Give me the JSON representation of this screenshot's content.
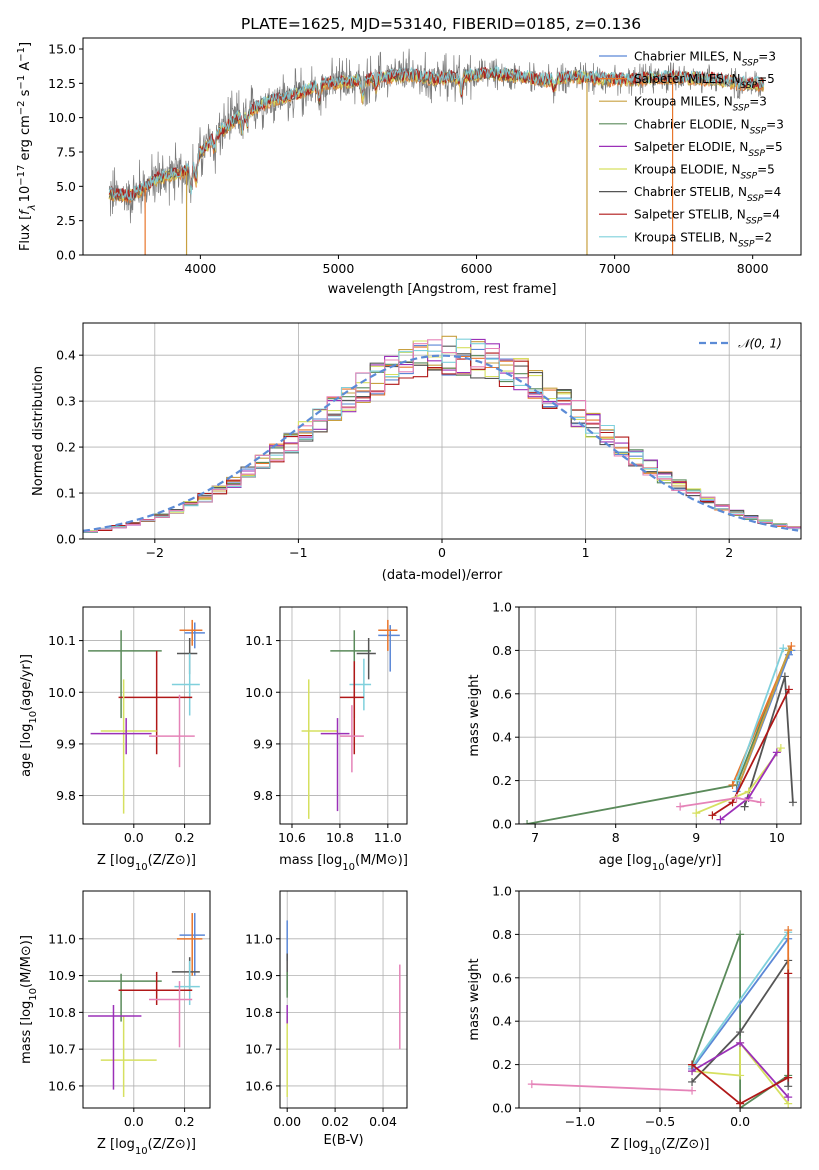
{
  "figure_title": "PLATE=1625, MJD=53140, FIBERID=0185, z=0.136",
  "colors": {
    "Chabrier MILES": "#5b87d6",
    "Salpeter MILES": "#e8762c",
    "Kroupa MILES": "#c8a040",
    "Chabrier ELODIE": "#5a8a5a",
    "Salpeter ELODIE": "#9b30b8",
    "Kroupa ELODIE": "#d6e060",
    "Chabrier STELIB": "#555555",
    "Salpeter STELIB": "#b01818",
    "Kroupa STELIB": "#7fd0dc",
    "pink": "#e583b8",
    "gaussian": "#5b8bd6"
  },
  "chart_data": [
    {
      "id": "spectrum",
      "type": "line",
      "xlabel": "wavelength [Angstrom, rest frame]",
      "ylabel": "Flux [f_λ 10^-17 erg cm^-2 s^-1 A^-1]",
      "ylabel_parts": {
        "pre": "Flux [",
        "f": "f",
        "fsub": "λ",
        "ten": "10",
        "exp1": "−17",
        "erg": " erg cm",
        "exp2": "−2",
        "s": " s",
        "exp3": "−1",
        "A": " A",
        "exp4": "−1",
        "post": "]"
      },
      "xlim": [
        3150,
        8350
      ],
      "ylim": [
        0,
        15.8
      ],
      "xticks": [
        4000,
        5000,
        6000,
        7000,
        8000
      ],
      "yticks": [
        0.0,
        2.5,
        5.0,
        7.5,
        10.0,
        12.5,
        15.0
      ],
      "ytick_labels": [
        "0.0",
        "2.5",
        "5.0",
        "7.5",
        "10.0",
        "12.5",
        "15.0"
      ],
      "legend": {
        "placement": "top-right",
        "entries": [
          {
            "name": "Chabrier MILES",
            "nssp": "3",
            "color": "#5b87d6"
          },
          {
            "name": "Salpeter MILES",
            "nssp": "5",
            "color": "#e8762c"
          },
          {
            "name": "Kroupa MILES",
            "nssp": "3",
            "color": "#c8a040"
          },
          {
            "name": "Chabrier ELODIE",
            "nssp": "3",
            "color": "#5a8a5a"
          },
          {
            "name": "Salpeter ELODIE",
            "nssp": "5",
            "color": "#9b30b8"
          },
          {
            "name": "Kroupa ELODIE",
            "nssp": "5",
            "color": "#d6e060"
          },
          {
            "name": "Chabrier STELIB",
            "nssp": "4",
            "color": "#555555"
          },
          {
            "name": "Salpeter STELIB",
            "nssp": "4",
            "color": "#b01818"
          },
          {
            "name": "Kroupa STELIB",
            "nssp": "2",
            "color": "#7fd0dc"
          }
        ]
      },
      "continuum": {
        "x": [
          3330,
          3500,
          3700,
          3900,
          4100,
          4300,
          4500,
          4700,
          4900,
          5100,
          5300,
          5500,
          5700,
          5900,
          6100,
          6300,
          6500,
          6700,
          6900,
          7100,
          7300,
          7500,
          7700,
          7900,
          8080
        ],
        "y": [
          4.4,
          4.3,
          5.6,
          6.1,
          8.6,
          10.2,
          11.2,
          11.7,
          12.5,
          12.6,
          12.9,
          13.1,
          12.8,
          13.0,
          13.2,
          13.0,
          12.7,
          13.0,
          12.8,
          12.7,
          12.9,
          12.9,
          12.8,
          12.5,
          12.4
        ]
      },
      "dropouts": [
        {
          "x": 3600,
          "color": "#e8762c"
        },
        {
          "x": 3900,
          "color": "#c8a040"
        },
        {
          "x": 6800,
          "color": "#c8a040"
        },
        {
          "x": 7420,
          "color": "#e8762c"
        }
      ]
    },
    {
      "id": "residuals",
      "type": "histogram",
      "xlabel": "(data-model)/error",
      "ylabel": "Normed distribution",
      "xlim": [
        -2.5,
        2.5
      ],
      "ylim": [
        0,
        0.47
      ],
      "xticks": [
        -2,
        -1,
        0,
        1,
        2
      ],
      "xtick_labels": [
        "−2",
        "−1",
        "0",
        "1",
        "2"
      ],
      "yticks": [
        0.0,
        0.1,
        0.2,
        0.3,
        0.4
      ],
      "ytick_labels": [
        "0.0",
        "0.1",
        "0.2",
        "0.3",
        "0.4"
      ],
      "legend": {
        "placement": "top-right",
        "label": "𝒩(0, 1)"
      },
      "bin_width": 0.1
    },
    {
      "id": "age_vs_Z",
      "type": "errorbar",
      "xlabel": "Z [log10(Z/Z⊙)]",
      "ylabel": "age [log10(age/yr)]",
      "xlim": [
        -0.2,
        0.3
      ],
      "ylim": [
        9.745,
        10.165
      ],
      "xticks": [
        0.0,
        0.2
      ],
      "xtick_labels": [
        "0.0",
        "0.2"
      ],
      "yticks": [
        9.8,
        9.9,
        10.0,
        10.1
      ],
      "ytick_labels": [
        "9.8",
        "9.9",
        "10.0",
        "10.1"
      ],
      "points": [
        {
          "c": "#5b87d6",
          "x": 0.24,
          "xe": [
            0.04,
            0.04
          ],
          "y": 10.115,
          "ye": [
            0.03,
            0.02
          ]
        },
        {
          "c": "#e8762c",
          "x": 0.23,
          "xe": [
            0.05,
            0.04
          ],
          "y": 10.12,
          "ye": [
            0.03,
            0.02
          ]
        },
        {
          "c": "#5a8a5a",
          "x": -0.05,
          "xe": [
            0.13,
            0.16
          ],
          "y": 10.08,
          "ye": [
            0.13,
            0.04
          ]
        },
        {
          "c": "#555555",
          "x": 0.22,
          "xe": [
            0.05,
            0.03
          ],
          "y": 10.075,
          "ye": [
            0.04,
            0.03
          ]
        },
        {
          "c": "#7fd0dc",
          "x": 0.22,
          "xe": [
            0.07,
            0.04
          ],
          "y": 10.015,
          "ye": [
            0.06,
            0.06
          ]
        },
        {
          "c": "#b01818",
          "x": 0.09,
          "xe": [
            0.15,
            0.14
          ],
          "y": 9.99,
          "ye": [
            0.11,
            0.09
          ]
        },
        {
          "c": "#d6e060",
          "x": -0.04,
          "xe": [
            0.09,
            0.13
          ],
          "y": 9.925,
          "ye": [
            0.16,
            0.1
          ]
        },
        {
          "c": "#9b30b8",
          "x": -0.03,
          "xe": [
            0.14,
            0.1
          ],
          "y": 9.92,
          "ye": [
            0.04,
            0.03
          ]
        },
        {
          "c": "#e583b8",
          "x": 0.18,
          "xe": [
            0.12,
            0.06
          ],
          "y": 9.915,
          "ye": [
            0.06,
            0.08
          ]
        }
      ]
    },
    {
      "id": "age_vs_mass",
      "type": "errorbar",
      "xlabel": "mass [log10(M/M⊙)]",
      "ylabel": "",
      "xlim": [
        10.55,
        11.08
      ],
      "ylim": [
        9.745,
        10.165
      ],
      "xticks": [
        10.6,
        10.8,
        11.0
      ],
      "xtick_labels": [
        "10.6",
        "10.8",
        "11.0"
      ],
      "yticks": [
        9.8,
        9.9,
        10.0,
        10.1
      ],
      "ytick_labels": [
        "9.8",
        "9.9",
        "10.0",
        "10.1"
      ],
      "points": [
        {
          "c": "#5b87d6",
          "x": 11.01,
          "xe": [
            0.05,
            0.04
          ],
          "y": 10.11,
          "ye": [
            0.07,
            0.02
          ]
        },
        {
          "c": "#e8762c",
          "x": 11.0,
          "xe": [
            0.04,
            0.04
          ],
          "y": 10.12,
          "ye": [
            0.04,
            0.02
          ]
        },
        {
          "c": "#5a8a5a",
          "x": 10.86,
          "xe": [
            0.1,
            0.07
          ],
          "y": 10.08,
          "ye": [
            0.13,
            0.04
          ]
        },
        {
          "c": "#555555",
          "x": 10.92,
          "xe": [
            0.05,
            0.03
          ],
          "y": 10.075,
          "ye": [
            0.05,
            0.03
          ]
        },
        {
          "c": "#7fd0dc",
          "x": 10.9,
          "xe": [
            0.06,
            0.03
          ],
          "y": 10.015,
          "ye": [
            0.05,
            0.05
          ]
        },
        {
          "c": "#b01818",
          "x": 10.86,
          "xe": [
            0.06,
            0.04
          ],
          "y": 9.99,
          "ye": [
            0.11,
            0.07
          ]
        },
        {
          "c": "#d6e060",
          "x": 10.67,
          "xe": [
            0.03,
            0.12
          ],
          "y": 9.925,
          "ye": [
            0.17,
            0.1
          ]
        },
        {
          "c": "#9b30b8",
          "x": 10.79,
          "xe": [
            0.07,
            0.05
          ],
          "y": 9.92,
          "ye": [
            0.15,
            0.03
          ]
        },
        {
          "c": "#e583b8",
          "x": 10.85,
          "xe": [
            0.05,
            0.05
          ],
          "y": 9.915,
          "ye": [
            0.07,
            0.06
          ]
        }
      ]
    },
    {
      "id": "massweight_vs_age",
      "type": "line",
      "xlabel": "age [log10(age/yr)]",
      "ylabel": "mass weight",
      "xlim": [
        6.8,
        10.3
      ],
      "ylim": [
        0,
        1
      ],
      "xticks": [
        7,
        8,
        9,
        10
      ],
      "xtick_labels": [
        "7",
        "8",
        "9",
        "10"
      ],
      "yticks": [
        0.0,
        0.2,
        0.4,
        0.6,
        0.8,
        1.0
      ],
      "ytick_labels": [
        "0.0",
        "0.2",
        "0.4",
        "0.6",
        "0.8",
        "1.0"
      ],
      "series": [
        {
          "c": "#5a8a5a",
          "x": [
            6.9,
            9.5,
            10.15
          ],
          "y": [
            0.0,
            0.18,
            0.8
          ]
        },
        {
          "c": "#555555",
          "x": [
            9.6,
            10.1,
            10.2
          ],
          "y": [
            0.08,
            0.68,
            0.1
          ]
        },
        {
          "c": "#5b87d6",
          "x": [
            9.5,
            10.15,
            10.18
          ],
          "y": [
            0.15,
            0.78,
            0.8
          ]
        },
        {
          "c": "#e8762c",
          "x": [
            9.45,
            10.18
          ],
          "y": [
            0.18,
            0.82
          ]
        },
        {
          "c": "#c8a040",
          "x": [
            9.55,
            10.15
          ],
          "y": [
            0.2,
            0.8
          ]
        },
        {
          "c": "#7fd0dc",
          "x": [
            9.5,
            10.08
          ],
          "y": [
            0.2,
            0.81
          ]
        },
        {
          "c": "#b01818",
          "x": [
            9.2,
            9.45,
            10.15
          ],
          "y": [
            0.04,
            0.1,
            0.62
          ]
        },
        {
          "c": "#d6e060",
          "x": [
            9.0,
            9.65,
            10.05
          ],
          "y": [
            0.05,
            0.15,
            0.35
          ]
        },
        {
          "c": "#9b30b8",
          "x": [
            9.3,
            9.65,
            10.0
          ],
          "y": [
            0.02,
            0.12,
            0.33
          ]
        },
        {
          "c": "#e583b8",
          "x": [
            8.8,
            9.5,
            9.8
          ],
          "y": [
            0.08,
            0.12,
            0.1
          ]
        }
      ]
    },
    {
      "id": "mass_vs_Z",
      "type": "errorbar",
      "xlabel": "Z [log10(Z/Z⊙)]",
      "ylabel": "mass [log10(M/M⊙)]",
      "xlim": [
        -0.2,
        0.3
      ],
      "ylim": [
        10.54,
        11.13
      ],
      "xticks": [
        0.0,
        0.2
      ],
      "xtick_labels": [
        "0.0",
        "0.2"
      ],
      "yticks": [
        10.6,
        10.7,
        10.8,
        10.9,
        11.0
      ],
      "ytick_labels": [
        "10.6",
        "10.7",
        "10.8",
        "10.9",
        "11.0"
      ],
      "points": [
        {
          "c": "#5b87d6",
          "x": 0.24,
          "xe": [
            0.06,
            0.04
          ],
          "y": 11.01,
          "ye": [
            0.11,
            0.06
          ]
        },
        {
          "c": "#e8762c",
          "x": 0.23,
          "xe": [
            0.06,
            0.04
          ],
          "y": 11.0,
          "ye": [
            0.1,
            0.07
          ]
        },
        {
          "c": "#5a8a5a",
          "x": -0.05,
          "xe": [
            0.13,
            0.16
          ],
          "y": 10.885,
          "ye": [
            0.11,
            0.02
          ]
        },
        {
          "c": "#555555",
          "x": 0.22,
          "xe": [
            0.07,
            0.04
          ],
          "y": 10.91,
          "ye": [
            0.05,
            0.04
          ]
        },
        {
          "c": "#7fd0dc",
          "x": 0.22,
          "xe": [
            0.06,
            0.04
          ],
          "y": 10.87,
          "ye": [
            0.05,
            0.07
          ]
        },
        {
          "c": "#b01818",
          "x": 0.09,
          "xe": [
            0.15,
            0.14
          ],
          "y": 10.86,
          "ye": [
            0.04,
            0.05
          ]
        },
        {
          "c": "#d6e060",
          "x": -0.04,
          "xe": [
            0.09,
            0.13
          ],
          "y": 10.67,
          "ye": [
            0.1,
            0.12
          ]
        },
        {
          "c": "#9b30b8",
          "x": -0.08,
          "xe": [
            0.1,
            0.11
          ],
          "y": 10.79,
          "ye": [
            0.2,
            0.03
          ]
        },
        {
          "c": "#e583b8",
          "x": 0.18,
          "xe": [
            0.12,
            0.05
          ],
          "y": 10.835,
          "ye": [
            0.13,
            0.05
          ]
        }
      ]
    },
    {
      "id": "mass_vs_ebv",
      "type": "errorbar",
      "xlabel": "E(B-V)",
      "ylabel": "",
      "xlim": [
        -0.003,
        0.05
      ],
      "ylim": [
        10.54,
        11.13
      ],
      "xticks": [
        0.0,
        0.02,
        0.04
      ],
      "xtick_labels": [
        "0.00",
        "0.02",
        "0.04"
      ],
      "yticks": [
        10.6,
        10.7,
        10.8,
        10.9,
        11.0
      ],
      "ytick_labels": [
        "10.6",
        "10.7",
        "10.8",
        "10.9",
        "11.0"
      ],
      "points": [
        {
          "c": "#5b87d6",
          "x": 0.0,
          "xe": [
            0,
            0
          ],
          "y": 11.0,
          "ye": [
            0.06,
            0.05
          ]
        },
        {
          "c": "#555555",
          "x": 0.0,
          "xe": [
            0,
            0
          ],
          "y": 10.9,
          "ye": [
            0.04,
            0.06
          ]
        },
        {
          "c": "#5a8a5a",
          "x": 0.0,
          "xe": [
            0,
            0
          ],
          "y": 10.88,
          "ye": [
            0.04,
            0.03
          ]
        },
        {
          "c": "#d6e060",
          "x": 0.0,
          "xe": [
            0,
            0
          ],
          "y": 10.67,
          "ye": [
            0.1,
            0.12
          ]
        },
        {
          "c": "#9b30b8",
          "x": 0.0,
          "xe": [
            0,
            0
          ],
          "y": 10.79,
          "ye": [
            0.02,
            0.03
          ]
        },
        {
          "c": "#e583b8",
          "x": 0.047,
          "xe": [
            0,
            0
          ],
          "y": 10.82,
          "ye": [
            0.12,
            0.11
          ]
        }
      ]
    },
    {
      "id": "massweight_vs_Z",
      "type": "line",
      "xlabel": "Z [log10(Z/Z⊙)]",
      "ylabel": "mass weight",
      "xlim": [
        -1.38,
        0.38
      ],
      "ylim": [
        0,
        1
      ],
      "xticks": [
        -1.0,
        -0.5,
        0.0
      ],
      "xtick_labels": [
        "−1.0",
        "−0.5",
        "0.0"
      ],
      "yticks": [
        0.0,
        0.2,
        0.4,
        0.6,
        0.8,
        1.0
      ],
      "ytick_labels": [
        "0.0",
        "0.2",
        "0.4",
        "0.6",
        "0.8",
        "1.0"
      ],
      "series": [
        {
          "c": "#e583b8",
          "x": [
            -1.3,
            -0.3
          ],
          "y": [
            0.11,
            0.08
          ]
        },
        {
          "c": "#5a8a5a",
          "x": [
            -0.3,
            0.0,
            0.0,
            0.3
          ],
          "y": [
            0.2,
            0.8,
            0.0,
            0.15
          ]
        },
        {
          "c": "#555555",
          "x": [
            -0.3,
            0.0,
            0.3,
            0.3
          ],
          "y": [
            0.12,
            0.35,
            0.68,
            0.1
          ]
        },
        {
          "c": "#5b87d6",
          "x": [
            -0.3,
            0.3
          ],
          "y": [
            0.18,
            0.78
          ]
        },
        {
          "c": "#7fd0dc",
          "x": [
            -0.3,
            0.3
          ],
          "y": [
            0.19,
            0.81
          ]
        },
        {
          "c": "#e8762c",
          "x": [
            0.3,
            0.3
          ],
          "y": [
            0.62,
            0.82
          ]
        },
        {
          "c": "#d6e060",
          "x": [
            -0.3,
            0.0,
            0.0,
            0.3
          ],
          "y": [
            0.17,
            0.15,
            0.3,
            0.02
          ]
        },
        {
          "c": "#9b30b8",
          "x": [
            -0.3,
            0.0,
            0.3
          ],
          "y": [
            0.17,
            0.3,
            0.05
          ]
        },
        {
          "c": "#b01818",
          "x": [
            -0.3,
            0.0,
            0.3,
            0.3
          ],
          "y": [
            0.2,
            0.02,
            0.14,
            0.62
          ]
        }
      ]
    }
  ]
}
